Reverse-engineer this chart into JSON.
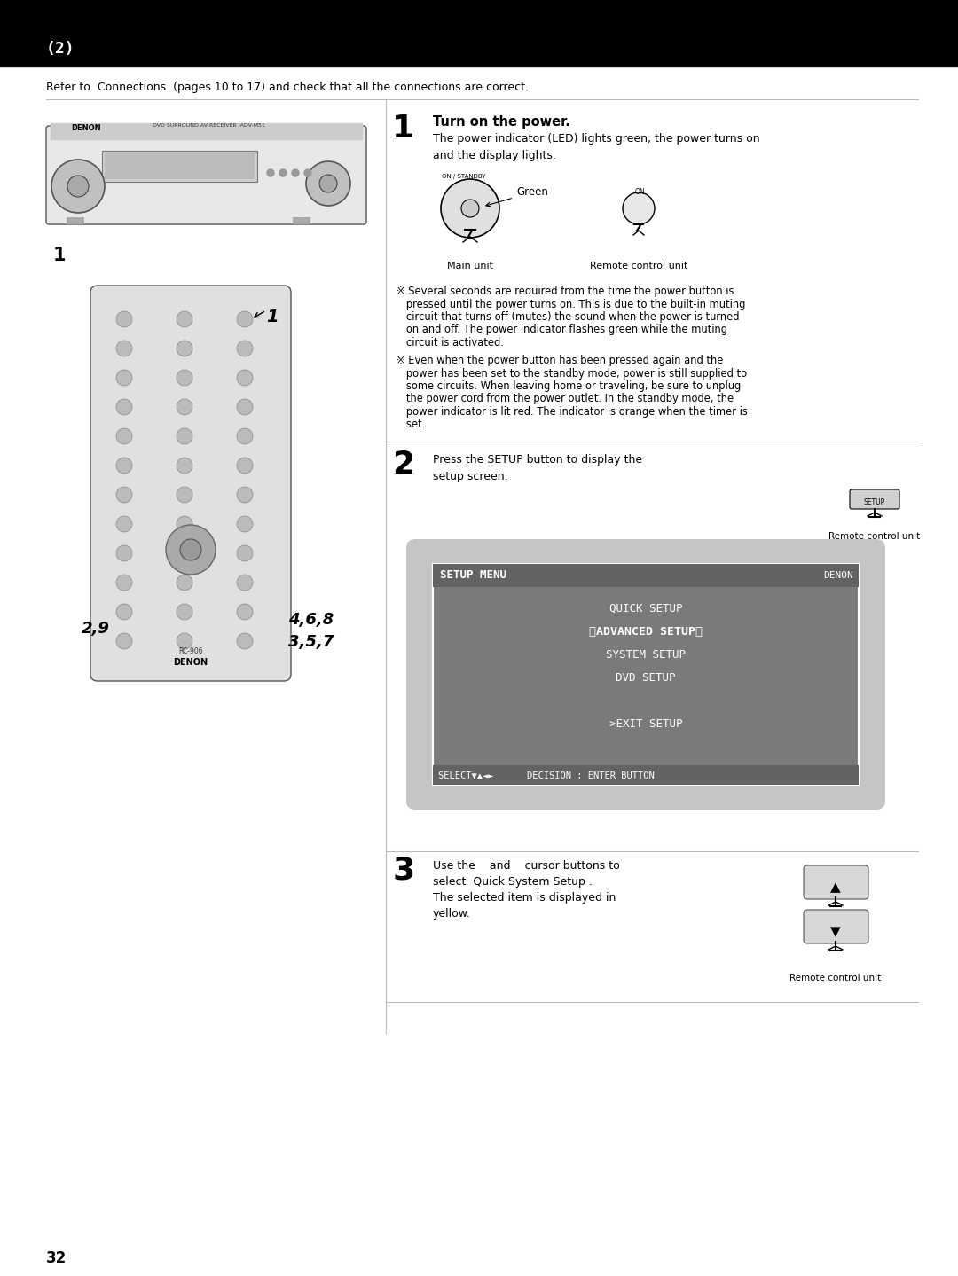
{
  "page_number": "32",
  "header_text": "(2)",
  "header_bg": "#000000",
  "header_text_color": "#ffffff",
  "page_bg": "#ffffff",
  "intro_text": "Refer to  Connections  (pages 10 to 17) and check that all the connections are correct.",
  "step1_number": "1",
  "step1_title": "Turn on the power.",
  "step1_body": "The power indicator (LED) lights green, the power turns on\nand the display lights.",
  "step1_green_label": "Green",
  "step1_main_unit": "Main unit",
  "step1_remote_unit": "Remote control unit",
  "step1_note1": "※ Several seconds are required from the time the power button is pressed until the power turns on. This is due to the built-in muting circuit that turns off (mutes) the sound when the power is turned on and off. The power indicator flashes green while the muting circuit is activated.",
  "step1_note2": "※ Even when the power button has been pressed again and the power has been set to the standby mode, power is still supplied to some circuits. When leaving home or traveling, be sure to unplug the power cord from the power outlet. In the standby mode, the power indicator is lit red. The indicator is orange when the timer is set.",
  "step2_number": "2",
  "step2_text": "Press the SETUP button to display the\nsetup screen.",
  "step2_remote": "Remote control unit",
  "menu_bg": "#b8b8b8",
  "menu_inner_bg": "#7a7a7a",
  "menu_title": "SETUP MENU",
  "menu_brand": "DENON",
  "menu_item1": "QUICK SETUP",
  "menu_item2": "〈ADVANCED SETUP〉",
  "menu_item3": "SYSTEM SETUP",
  "menu_item4": "DVD SETUP",
  "menu_item5": ">EXIT SETUP",
  "menu_footer": "SELECT▼▲◄►      DECISION : ENTER BUTTON",
  "step3_number": "3",
  "step3_line1": "Use the    and    cursor buttons to",
  "step3_line2": "select  Quick System Setup .",
  "step3_line3": "The selected item is displayed in",
  "step3_line4": "yellow.",
  "step3_remote": "Remote control unit",
  "remote_label_29": "2,9",
  "remote_label_468": "4,6,8",
  "remote_label_357": "3,5,7",
  "divider_color": "#bbbbbb",
  "text_color": "#000000"
}
